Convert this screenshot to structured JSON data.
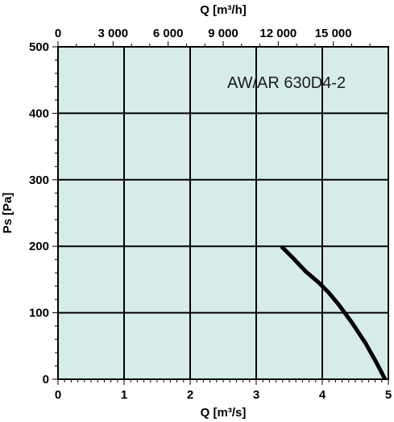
{
  "chart_data": {
    "type": "line",
    "title": "",
    "annotation": "AW/AR 630D4-2",
    "xlabel": "Q [m³/s]",
    "ylabel": "Ps [Pa]",
    "x2label": "Q [m³/h]",
    "xlim": [
      0,
      5
    ],
    "ylim": [
      0,
      500
    ],
    "x2lim": [
      0,
      18000
    ],
    "xticks": [
      "0",
      "1",
      "2",
      "3",
      "4",
      "5"
    ],
    "yticks": [
      "0",
      "100",
      "200",
      "300",
      "400",
      "500"
    ],
    "x2ticks": [
      "0",
      "3 000",
      "6 000",
      "9 000",
      "12 000",
      "15 000"
    ],
    "grid": true,
    "background_color": "#d6ecea",
    "series": [
      {
        "name": "",
        "color": "#000000",
        "x": [
          3.38,
          3.55,
          3.75,
          3.95,
          4.1,
          4.25,
          4.45,
          4.65,
          4.82,
          4.95
        ],
        "y": [
          200,
          183,
          162,
          145,
          130,
          112,
          85,
          55,
          25,
          0
        ]
      }
    ]
  }
}
